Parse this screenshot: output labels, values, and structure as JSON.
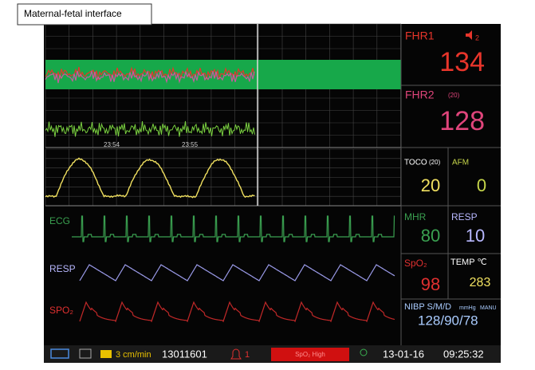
{
  "header": {
    "title": "Maternal-fetal interface"
  },
  "fetal_strip": {
    "time_labels": [
      "23:54",
      "23:55"
    ]
  },
  "waveforms": {
    "ecg": "ECG",
    "resp": "RESP",
    "spo2": "SPO₂"
  },
  "parameters": {
    "fhr1": {
      "label": "FHR1",
      "channel": "2",
      "value": "134"
    },
    "fhr2": {
      "label": "FHR2",
      "channel": "(20)",
      "value": "128"
    },
    "toco": {
      "label": "TOCO",
      "scale": "(20)",
      "value": "20"
    },
    "afm": {
      "label": "AFM",
      "value": "0"
    },
    "mhr": {
      "label": "MHR",
      "value": "80"
    },
    "resp": {
      "label": "RESP",
      "value": "10"
    },
    "spo2": {
      "label": "SpO₂",
      "value": "98"
    },
    "temp": {
      "label": "TEMP ℃",
      "value": "283"
    },
    "nibp": {
      "label": "NIBP S/M/D",
      "unit": "mmHg",
      "mode": "MANU",
      "value": "128/90/78"
    }
  },
  "status_bar": {
    "speed": "3 cm/min",
    "id": "13011601",
    "alarm_count": "1",
    "alarm": "SpO₂ High",
    "date": "13-01-16",
    "time": "09:25:32"
  }
}
